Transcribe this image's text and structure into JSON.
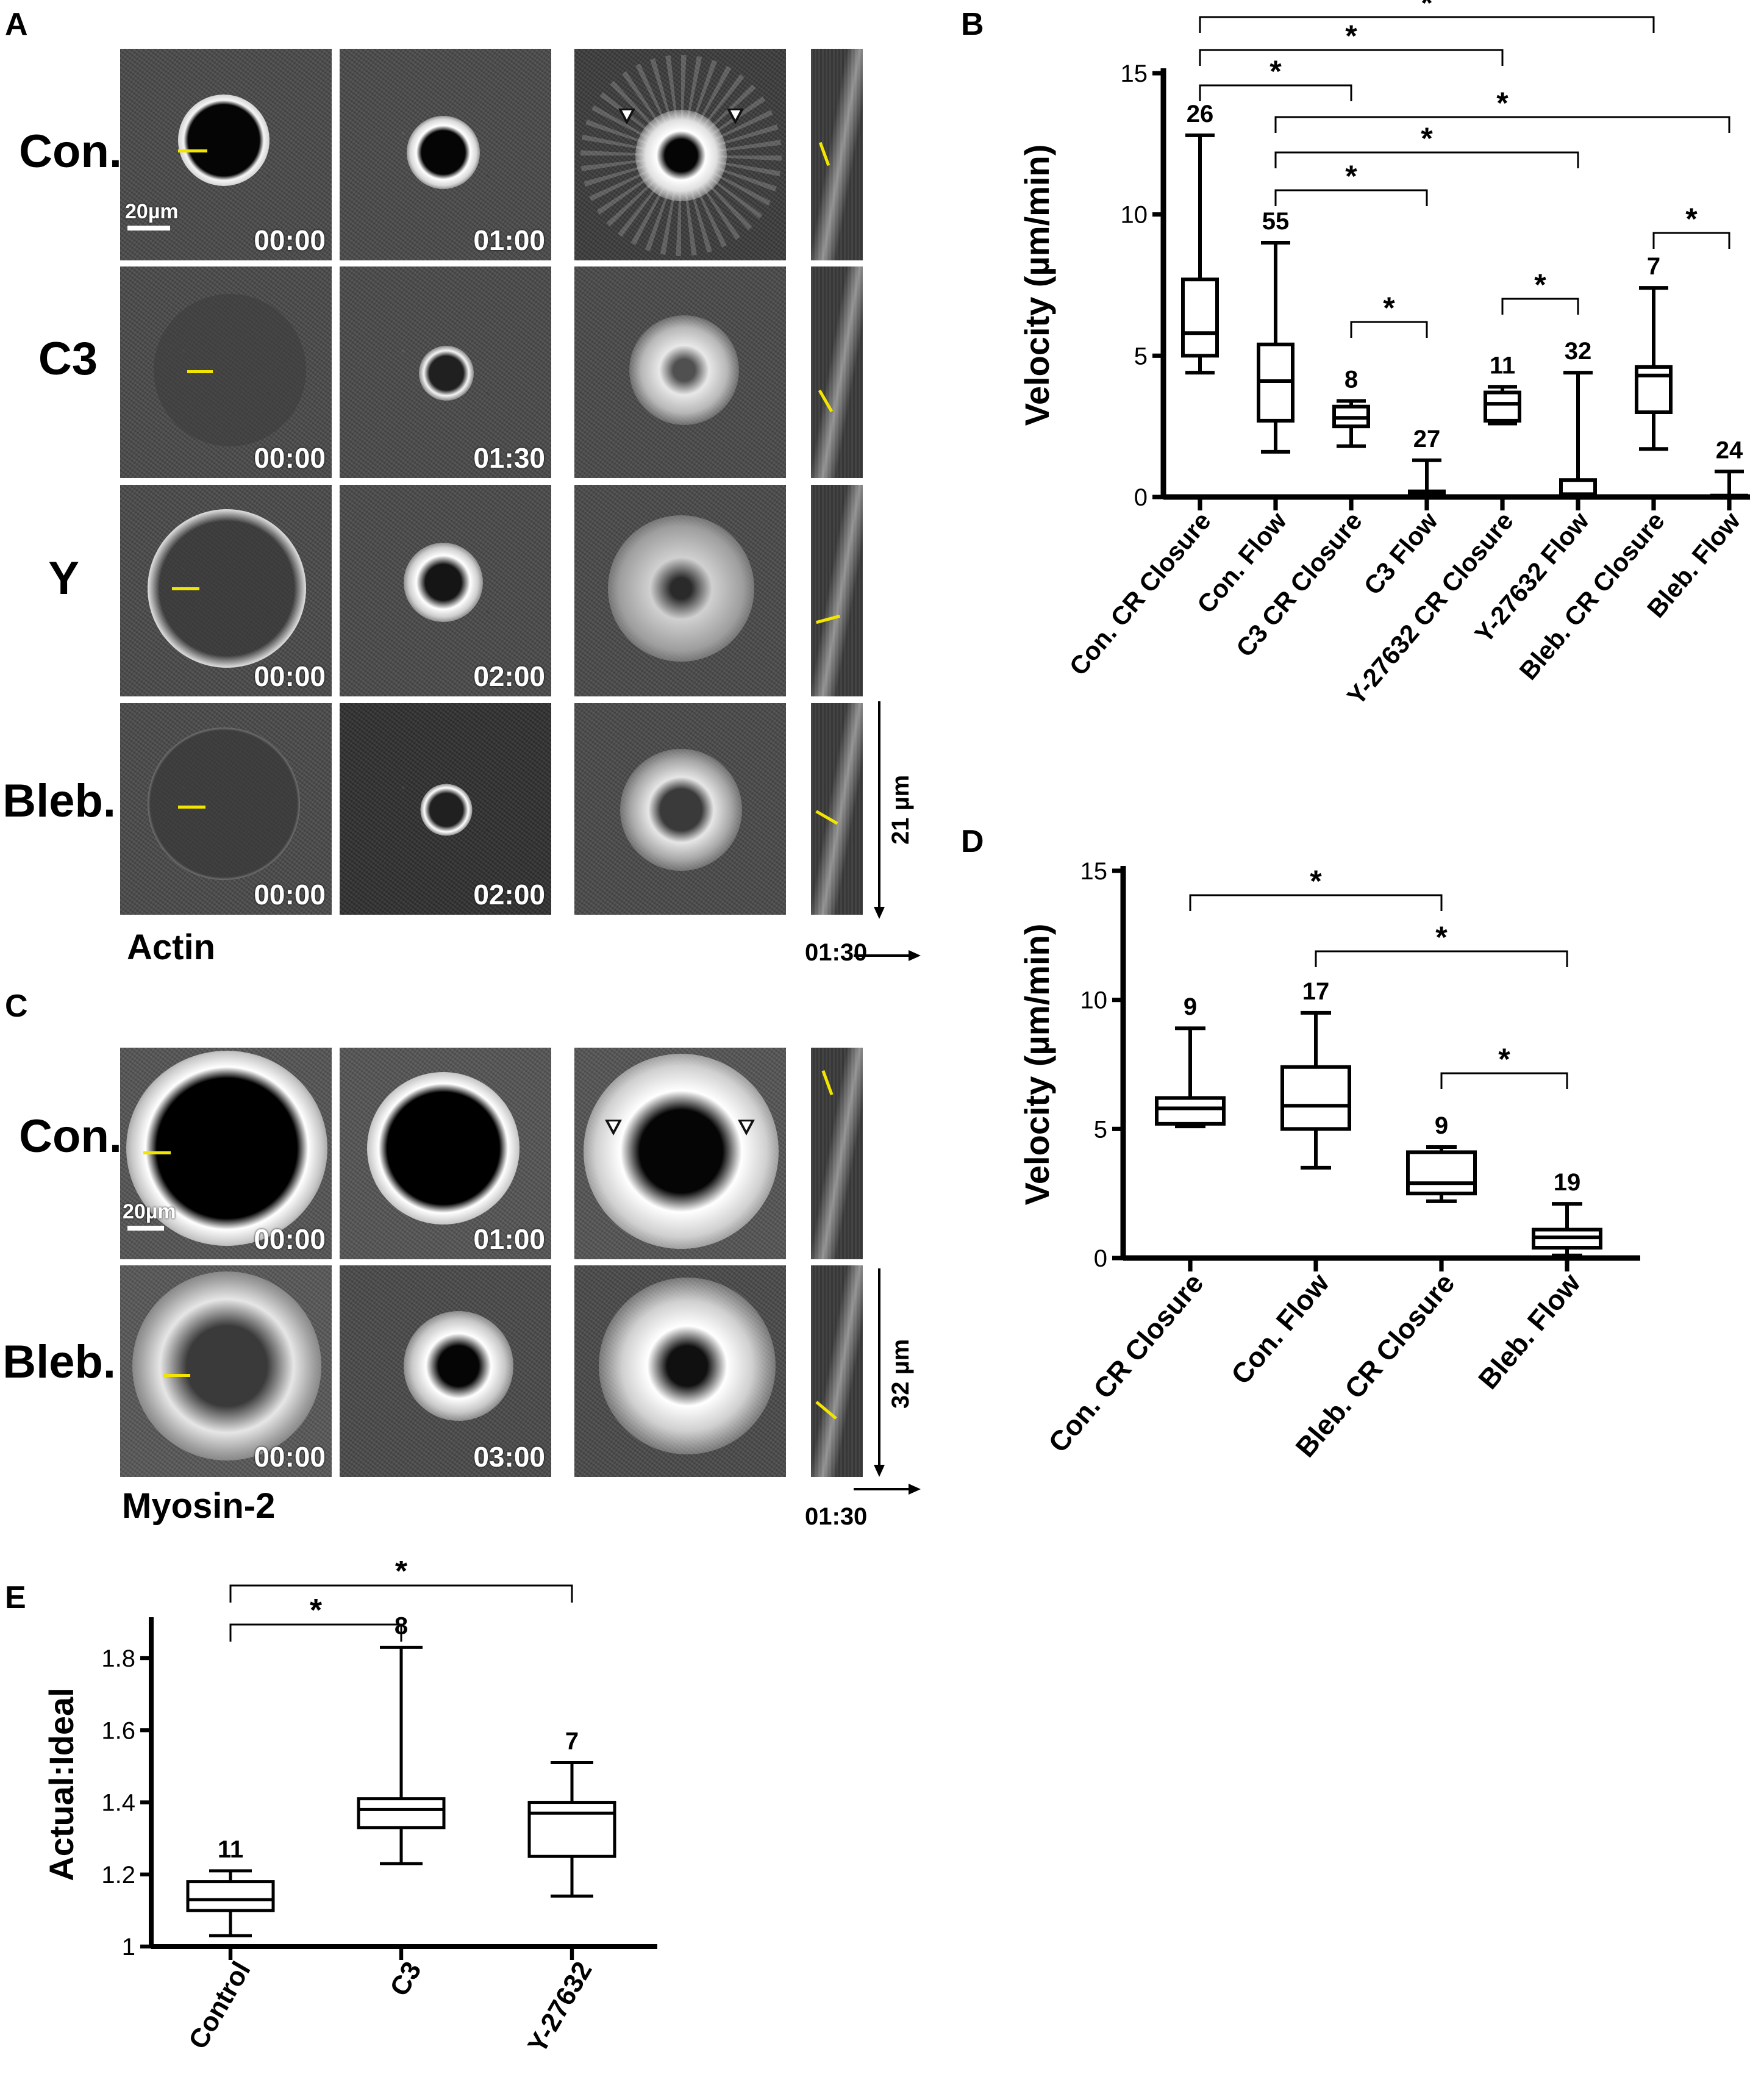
{
  "panels": {
    "A": {
      "letter": "A",
      "rows": [
        "Con.",
        "C3",
        "Y",
        "Bleb."
      ],
      "timestamps": [
        [
          "00:00",
          "01:00"
        ],
        [
          "00:00",
          "01:30"
        ],
        [
          "00:00",
          "02:00"
        ],
        [
          "00:00",
          "02:00"
        ]
      ],
      "scale_label": "20µm",
      "caption": "Actin",
      "kymo_space": "21 µm",
      "kymo_time": "01:30"
    },
    "C": {
      "letter": "C",
      "rows": [
        "Con.",
        "Bleb."
      ],
      "timestamps": [
        [
          "00:00",
          "01:00"
        ],
        [
          "00:00",
          "03:00"
        ]
      ],
      "scale_label": "20µm",
      "caption": "Myosin-2",
      "kymo_space": "32 µm",
      "kymo_time": "01:30"
    }
  },
  "chart_data": [
    {
      "id": "B",
      "letter": "B",
      "type": "box",
      "ylabel": "Velocity (µm/min)",
      "ylim": [
        0,
        15
      ],
      "yticks": [
        0,
        5,
        10,
        15
      ],
      "categories": [
        "Con. CR Closure",
        "Con. Flow",
        "C3 CR Closure",
        "C3 Flow",
        "Y-27632 CR Closure",
        "Y-27632 Flow",
        "Bleb. CR Closure",
        "Bleb. Flow"
      ],
      "n": [
        "26",
        "55",
        "8",
        "27",
        "11",
        "32",
        "7",
        "24"
      ],
      "boxes": [
        {
          "min": 4.4,
          "q1": 5.0,
          "median": 5.8,
          "q3": 7.7,
          "max": 12.8
        },
        {
          "min": 1.6,
          "q1": 2.7,
          "median": 4.1,
          "q3": 5.4,
          "max": 9.0
        },
        {
          "min": 1.8,
          "q1": 2.5,
          "median": 2.8,
          "q3": 3.2,
          "max": 3.4
        },
        {
          "min": 0.0,
          "q1": 0.05,
          "median": 0.1,
          "q3": 0.2,
          "max": 1.3
        },
        {
          "min": 2.6,
          "q1": 2.7,
          "median": 3.3,
          "q3": 3.7,
          "max": 3.9
        },
        {
          "min": 0.0,
          "q1": 0.0,
          "median": 0.1,
          "q3": 0.6,
          "max": 4.4
        },
        {
          "min": 1.7,
          "q1": 3.0,
          "median": 4.3,
          "q3": 4.6,
          "max": 7.4
        },
        {
          "min": 0.0,
          "q1": 0.0,
          "median": 0.0,
          "q3": 0.05,
          "max": 0.9
        }
      ],
      "significance": [
        {
          "from": 0,
          "to": 2,
          "label": "*"
        },
        {
          "from": 0,
          "to": 4,
          "label": "*"
        },
        {
          "from": 0,
          "to": 6,
          "label": "*"
        },
        {
          "from": 1,
          "to": 3,
          "label": "*"
        },
        {
          "from": 1,
          "to": 5,
          "label": "*"
        },
        {
          "from": 1,
          "to": 7,
          "label": "*"
        },
        {
          "from": 2,
          "to": 3,
          "label": "*"
        },
        {
          "from": 4,
          "to": 5,
          "label": "*"
        },
        {
          "from": 6,
          "to": 7,
          "label": "*"
        }
      ]
    },
    {
      "id": "D",
      "letter": "D",
      "type": "box",
      "ylabel": "Velocity (µm/min)",
      "ylim": [
        0,
        15
      ],
      "yticks": [
        0,
        5,
        10,
        15
      ],
      "categories": [
        "Con. CR Closure",
        "Con. Flow",
        "Bleb. CR Closure",
        "Bleb. Flow"
      ],
      "n": [
        "9",
        "17",
        "9",
        "19"
      ],
      "boxes": [
        {
          "min": 5.1,
          "q1": 5.2,
          "median": 5.8,
          "q3": 6.2,
          "max": 8.9
        },
        {
          "min": 3.5,
          "q1": 5.0,
          "median": 5.9,
          "q3": 7.4,
          "max": 9.5
        },
        {
          "min": 2.2,
          "q1": 2.5,
          "median": 2.9,
          "q3": 4.1,
          "max": 4.3
        },
        {
          "min": 0.1,
          "q1": 0.4,
          "median": 0.8,
          "q3": 1.1,
          "max": 2.1
        }
      ],
      "significance": [
        {
          "from": 0,
          "to": 2,
          "label": "*"
        },
        {
          "from": 1,
          "to": 3,
          "label": "*"
        },
        {
          "from": 2,
          "to": 3,
          "label": "*"
        }
      ]
    },
    {
      "id": "E",
      "letter": "E",
      "type": "box",
      "ylabel": "Actual:Ideal",
      "ylim": [
        1.0,
        1.9
      ],
      "yticks": [
        1.0,
        1.2,
        1.4,
        1.6,
        1.8
      ],
      "categories": [
        "Control",
        "C3",
        "Y-27632"
      ],
      "n": [
        "11",
        "8",
        "7"
      ],
      "boxes": [
        {
          "min": 1.03,
          "q1": 1.1,
          "median": 1.13,
          "q3": 1.18,
          "max": 1.21
        },
        {
          "min": 1.23,
          "q1": 1.33,
          "median": 1.38,
          "q3": 1.41,
          "max": 1.83
        },
        {
          "min": 1.14,
          "q1": 1.25,
          "median": 1.37,
          "q3": 1.4,
          "max": 1.51
        }
      ],
      "significance": [
        {
          "from": 0,
          "to": 1,
          "label": "*"
        },
        {
          "from": 0,
          "to": 2,
          "label": "*"
        }
      ]
    }
  ]
}
